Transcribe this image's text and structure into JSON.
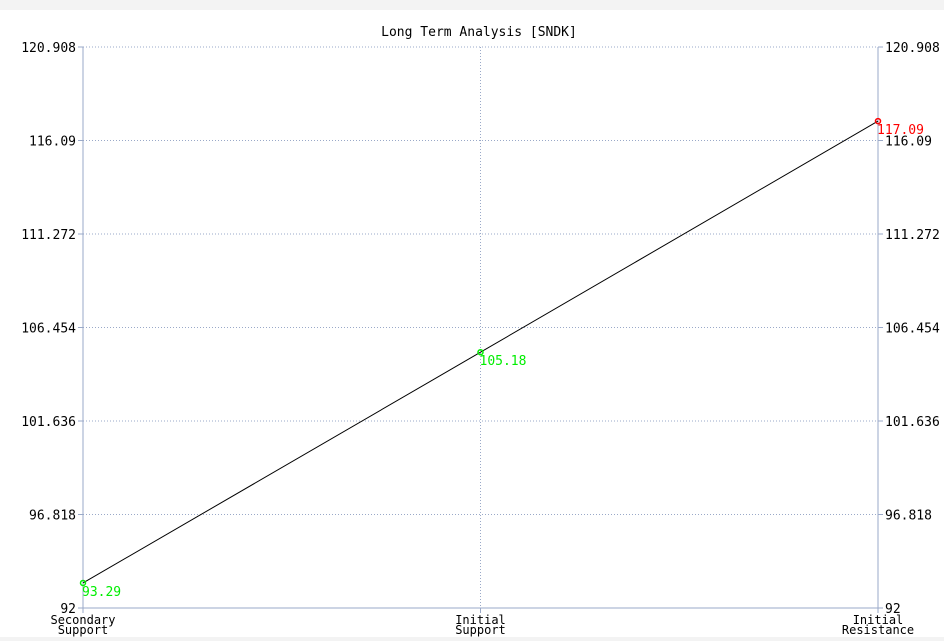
{
  "chart_data": {
    "type": "line",
    "title": "Long Term Analysis [SNDK]",
    "xlabel": "",
    "ylabel": "",
    "categories": [
      [
        "Secondary",
        "Support"
      ],
      [
        "Initial",
        "Support"
      ],
      [
        "Initial",
        "Resistance"
      ]
    ],
    "values": [
      93.29,
      105.18,
      117.09
    ],
    "value_labels": [
      "93.29",
      "105.18",
      "117.09"
    ],
    "point_colors": [
      "#00ee00",
      "#00ee00",
      "#ff0000"
    ],
    "ylim": [
      92,
      120.908
    ],
    "yticks": [
      "92",
      "96.818",
      "101.636",
      "106.454",
      "111.272",
      "116.09",
      "120.908"
    ],
    "ytick_values": [
      92,
      96.818,
      101.636,
      106.454,
      111.272,
      116.09,
      120.908
    ],
    "grid": true,
    "line_color": "#000000",
    "grid_color": "#9aa9c8",
    "background_color": "#ffffff"
  }
}
